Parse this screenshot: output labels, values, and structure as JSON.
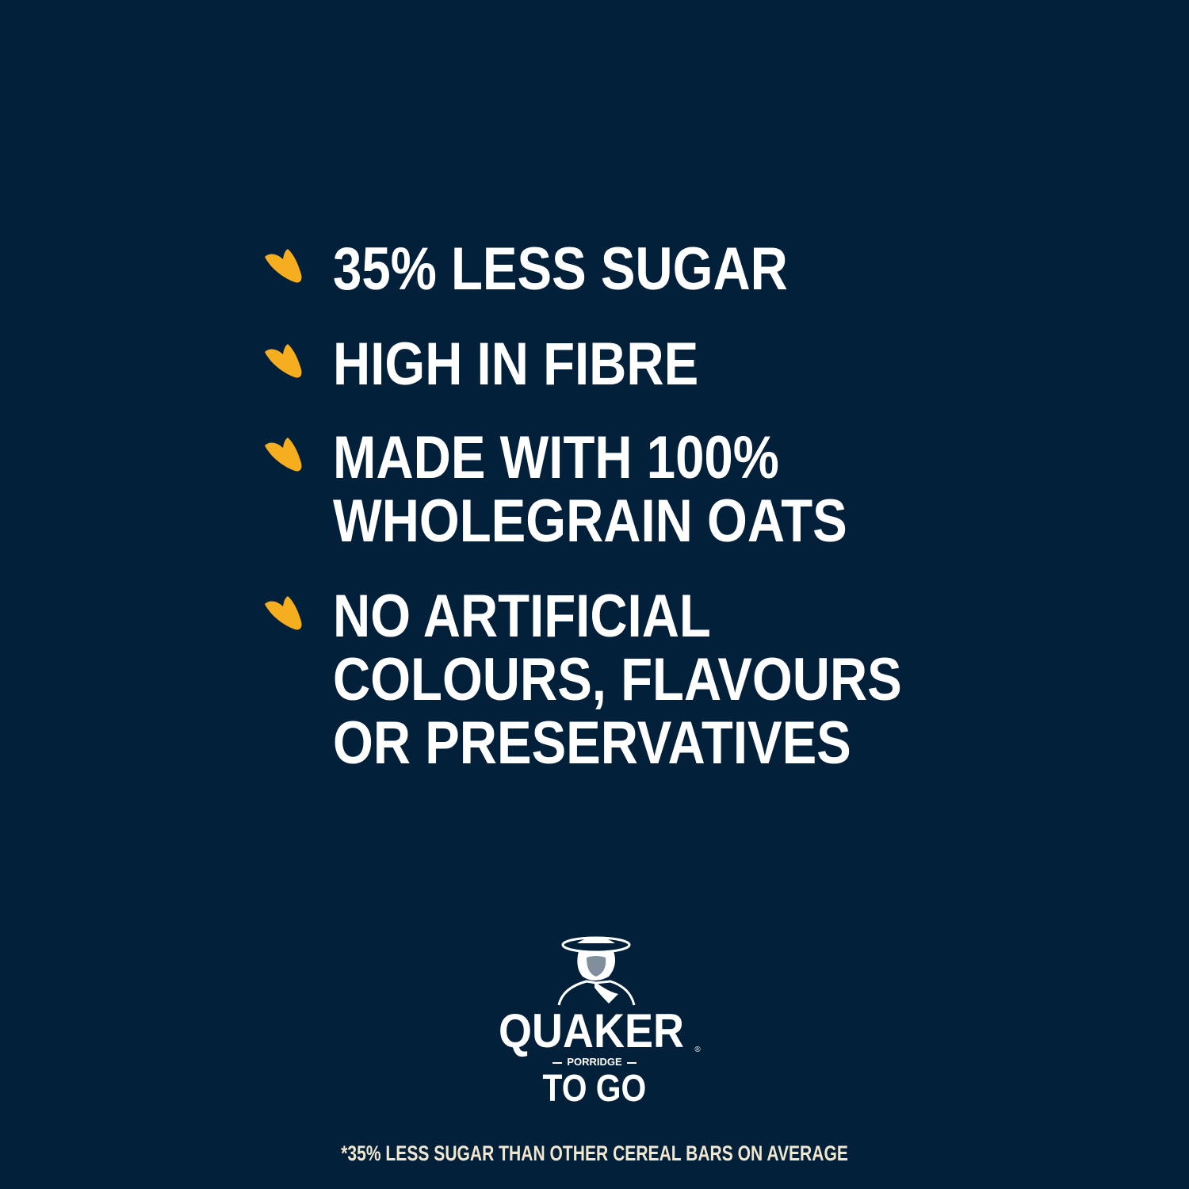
{
  "colors": {
    "background": "#03203a",
    "accent": "#f5ae1f",
    "text": "#ffffff",
    "footnote": "#f1e7cf"
  },
  "bullet_icon": "oat-grain-icon",
  "benefits": [
    {
      "lines": [
        "35% LESS SUGAR"
      ]
    },
    {
      "lines": [
        "HIGH IN FIBRE"
      ]
    },
    {
      "lines": [
        "MADE WITH 100%",
        "WHOLEGRAIN OATS"
      ]
    },
    {
      "lines": [
        "NO ARTIFICIAL",
        "COLOURS, FLAVOURS",
        "OR PRESERVATIVES"
      ]
    }
  ],
  "logo": {
    "brand": "QUAKER",
    "sub": "PORRIDGE",
    "product": "TO GO",
    "mark": "®"
  },
  "footnote": "*35% LESS SUGAR THAN OTHER CEREAL BARS ON AVERAGE"
}
